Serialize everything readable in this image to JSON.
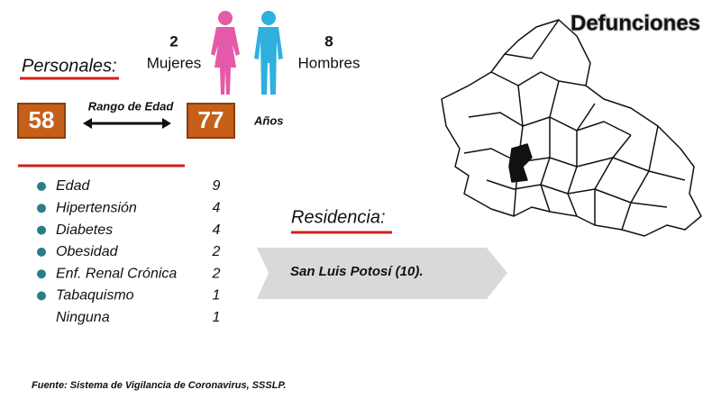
{
  "header": {
    "title": "Defunciones"
  },
  "personales": {
    "label": "Personales:",
    "mujeres": {
      "count": "2",
      "label": "Mujeres"
    },
    "hombres": {
      "count": "8",
      "label": "Hombres"
    },
    "edad_min": "58",
    "rango_label": "Rango de Edad",
    "edad_max": "77",
    "unidad": "Años"
  },
  "comorbilidades": [
    {
      "name": "Edad",
      "count": 9
    },
    {
      "name": "Hipertensión",
      "count": 4
    },
    {
      "name": "Diabetes",
      "count": 4
    },
    {
      "name": "Obesidad",
      "count": 2
    },
    {
      "name": "Enf. Renal Crónica",
      "count": 2
    },
    {
      "name": "Tabaquismo",
      "count": 1
    },
    {
      "name": "Ninguna",
      "count": 1
    }
  ],
  "residencia": {
    "label": "Residencia:",
    "lugar": "San Luis Potosí (10)."
  },
  "footer": {
    "source": "Fuente: Sistema de Vigilancia de Coronavirus, SSSLP."
  }
}
